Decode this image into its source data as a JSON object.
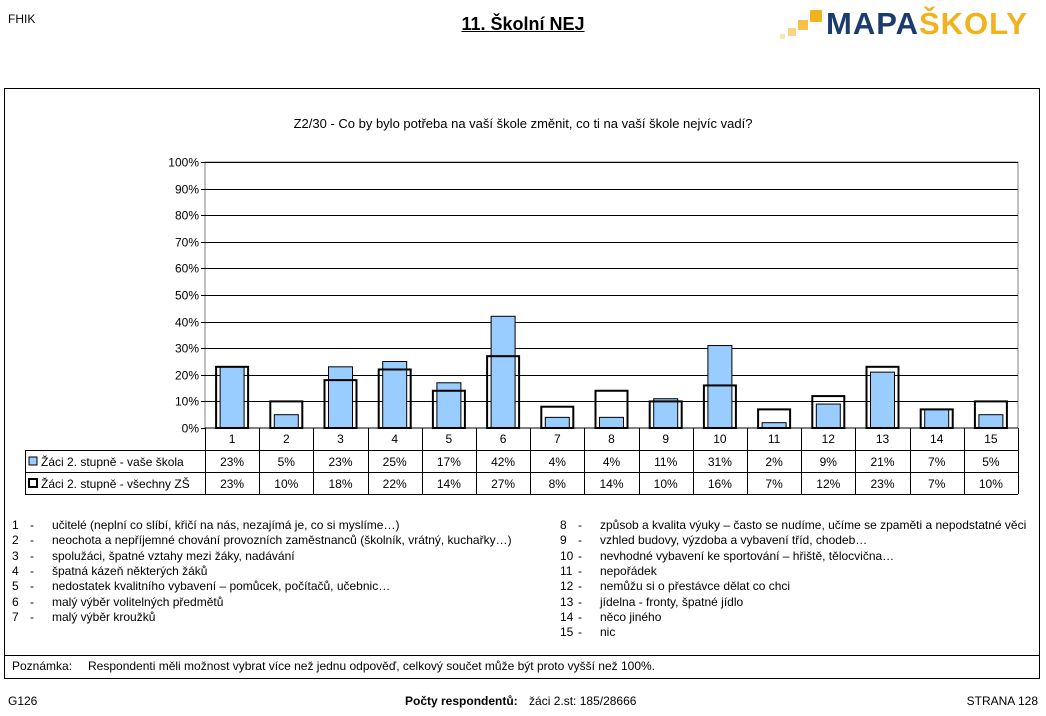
{
  "header": {
    "school_code": "FHIK",
    "title": "11. Školní NEJ",
    "logo_part1": "MAPA",
    "logo_part2": "ŠKOLY"
  },
  "colors": {
    "bar_school": "#99ccff",
    "bar_all_fill": "none",
    "bar_stroke": "#000000",
    "logo_dark": "#1a3b6e",
    "logo_orange": "#f2b21b"
  },
  "chart_data": {
    "type": "bar",
    "title": "Z2/30 - Co by bylo potřeba na vaší škole změnit, co ti na vaší škole nejvíc vadí?",
    "categories": [
      "1",
      "2",
      "3",
      "4",
      "5",
      "6",
      "7",
      "8",
      "9",
      "10",
      "11",
      "12",
      "13",
      "14",
      "15"
    ],
    "y_ticks": [
      "0%",
      "10%",
      "20%",
      "30%",
      "40%",
      "50%",
      "60%",
      "70%",
      "80%",
      "90%",
      "100%"
    ],
    "ylim": [
      0,
      100
    ],
    "grid": true,
    "series": [
      {
        "name": "Žáci 2. stupně - vaše škola",
        "values": [
          23,
          5,
          23,
          25,
          17,
          42,
          4,
          4,
          11,
          31,
          2,
          9,
          21,
          7,
          5
        ],
        "labels": [
          "23%",
          "5%",
          "23%",
          "25%",
          "17%",
          "42%",
          "4%",
          "4%",
          "11%",
          "31%",
          "2%",
          "9%",
          "21%",
          "7%",
          "5%"
        ]
      },
      {
        "name": "Žáci 2. stupně - všechny ZŠ",
        "values": [
          23,
          10,
          18,
          22,
          14,
          27,
          8,
          14,
          10,
          16,
          7,
          12,
          23,
          7,
          10
        ],
        "labels": [
          "23%",
          "10%",
          "18%",
          "22%",
          "14%",
          "27%",
          "8%",
          "14%",
          "10%",
          "16%",
          "7%",
          "12%",
          "23%",
          "7%",
          "10%"
        ]
      }
    ]
  },
  "legend_left": [
    {
      "num": "1",
      "text": "učitelé (neplní co slíbí, křičí na nás, nezajímá je, co si myslíme…)"
    },
    {
      "num": "2",
      "text": "neochota a nepříjemné chování provozních zaměstnanců (školník, vrátný, kuchařky…)"
    },
    {
      "num": "3",
      "text": "spolužáci, špatné vztahy mezi žáky, nadávání"
    },
    {
      "num": "4",
      "text": "špatná kázeň některých žáků"
    },
    {
      "num": "5",
      "text": "nedostatek kvalitního vybavení – pomůcek, počítačů, učebnic…"
    },
    {
      "num": "6",
      "text": "malý výběr volitelných předmětů"
    },
    {
      "num": "7",
      "text": "malý výběr kroužků"
    }
  ],
  "legend_right": [
    {
      "num": "8",
      "text": "způsob a kvalita výuky – často se nudíme, učíme se zpaměti a nepodstatné věci"
    },
    {
      "num": "9",
      "text": "vzhled budovy, výzdoba a vybavení tříd, chodeb…"
    },
    {
      "num": "10",
      "text": "nevhodné vybavení ke sportování – hřiště, tělocvična…"
    },
    {
      "num": "11",
      "text": "nepořádek"
    },
    {
      "num": "12",
      "text": "nemůžu si o přestávce dělat co chci"
    },
    {
      "num": "13",
      "text": "jídelna - fronty, špatné jídlo"
    },
    {
      "num": "14",
      "text": "něco jiného"
    },
    {
      "num": "15",
      "text": "nic"
    }
  ],
  "note": {
    "label": "Poznámka:",
    "text": "Respondenti měli možnost vybrat více než jednu odpověď, celkový součet může být proto vyšší než 100%."
  },
  "footer": {
    "code": "G126",
    "respondents_label": "Počty respondentů:",
    "respondents_value": "žáci 2.st: 185/28666",
    "page": "STRANA 128"
  }
}
